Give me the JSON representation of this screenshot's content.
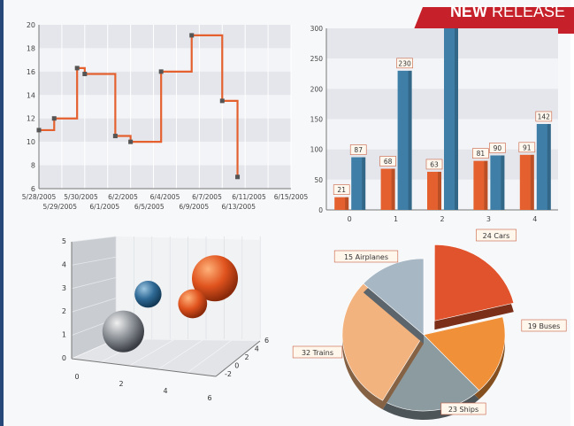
{
  "banner": {
    "word1": "NEW",
    "word2": "RELEASE",
    "color": "#c6202a"
  },
  "colors": {
    "line": "#e4612f",
    "orange": "#e4612f",
    "blue": "#3f7ea7"
  },
  "chart_data": [
    {
      "type": "line",
      "step": true,
      "y_ticks": [
        "20",
        "18",
        "16",
        "14",
        "12",
        "10",
        "8",
        "6"
      ],
      "ylim": [
        6,
        20
      ],
      "x_ticks_top": [
        "5/28/2005",
        "5/30/2005",
        "6/2/2005",
        "6/4/2005",
        "6/7/2005",
        "6/11/2005",
        "6/15/2005"
      ],
      "x_ticks_bottom": [
        "5/29/2005",
        "6/1/2005",
        "6/5/2005",
        "6/9/2005",
        "6/13/2005"
      ],
      "x_tick_positions": [
        0,
        1.5,
        3,
        4.5,
        6,
        7.5,
        9,
        10.5,
        12,
        13.5,
        15,
        16.5
      ],
      "points": [
        {
          "x": 0,
          "y": 11
        },
        {
          "x": 1,
          "y": 12
        },
        {
          "x": 2.5,
          "y": 16.3
        },
        {
          "x": 3,
          "y": 15.8
        },
        {
          "x": 5,
          "y": 10.5
        },
        {
          "x": 6,
          "y": 10
        },
        {
          "x": 8,
          "y": 16
        },
        {
          "x": 10,
          "y": 19.1
        },
        {
          "x": 12,
          "y": 13.5
        },
        {
          "x": 13,
          "y": 7
        }
      ],
      "xlim": [
        0,
        16.5
      ]
    },
    {
      "type": "bar",
      "categories": [
        "0",
        "1",
        "2",
        "3",
        "4"
      ],
      "ylim": [
        0,
        300
      ],
      "y_ticks": [
        "300",
        "250",
        "200",
        "150",
        "100",
        "50",
        "0"
      ],
      "series": [
        {
          "values": [
            21,
            68,
            63,
            81,
            91
          ],
          "labels": [
            "21",
            "68",
            "63",
            "81",
            "91"
          ]
        },
        {
          "values": [
            87,
            230,
            300,
            90,
            142
          ],
          "labels": [
            "87",
            "230",
            "",
            "90",
            "142"
          ]
        }
      ]
    },
    {
      "type": "scatter",
      "bubble3d": true,
      "y_ticks": [
        "5",
        "4",
        "3",
        "2",
        "1",
        "0"
      ],
      "x_ticks": [
        "0",
        "2",
        "4",
        "6"
      ],
      "z_ticks": [
        "6",
        "4",
        "2",
        "0",
        "-2"
      ],
      "points": [
        {
          "x": 5.5,
          "y": 3.2,
          "z": 2,
          "size": 3,
          "color": "orange"
        },
        {
          "x": 2.8,
          "y": 2.7,
          "z": 1,
          "size": 1.2,
          "color": "blue"
        },
        {
          "x": 4.6,
          "y": 2,
          "z": 2,
          "size": 1.4,
          "color": "orange"
        },
        {
          "x": 1.8,
          "y": 1.2,
          "z": 0,
          "size": 2.6,
          "color": "gray"
        }
      ]
    },
    {
      "type": "pie",
      "exploded": [
        "24 Cars"
      ],
      "slices": [
        {
          "label": "24 Cars",
          "value": 24,
          "color": "#e0532c"
        },
        {
          "label": "19 Buses",
          "value": 19,
          "color": "#f0913a"
        },
        {
          "label": "23 Ships",
          "value": 23,
          "color": "#8c9ba0"
        },
        {
          "label": "32 Trains",
          "value": 32,
          "color": "#f3b37e"
        },
        {
          "label": "15 Airplanes",
          "value": 15,
          "color": "#a7b7c4"
        }
      ]
    }
  ]
}
